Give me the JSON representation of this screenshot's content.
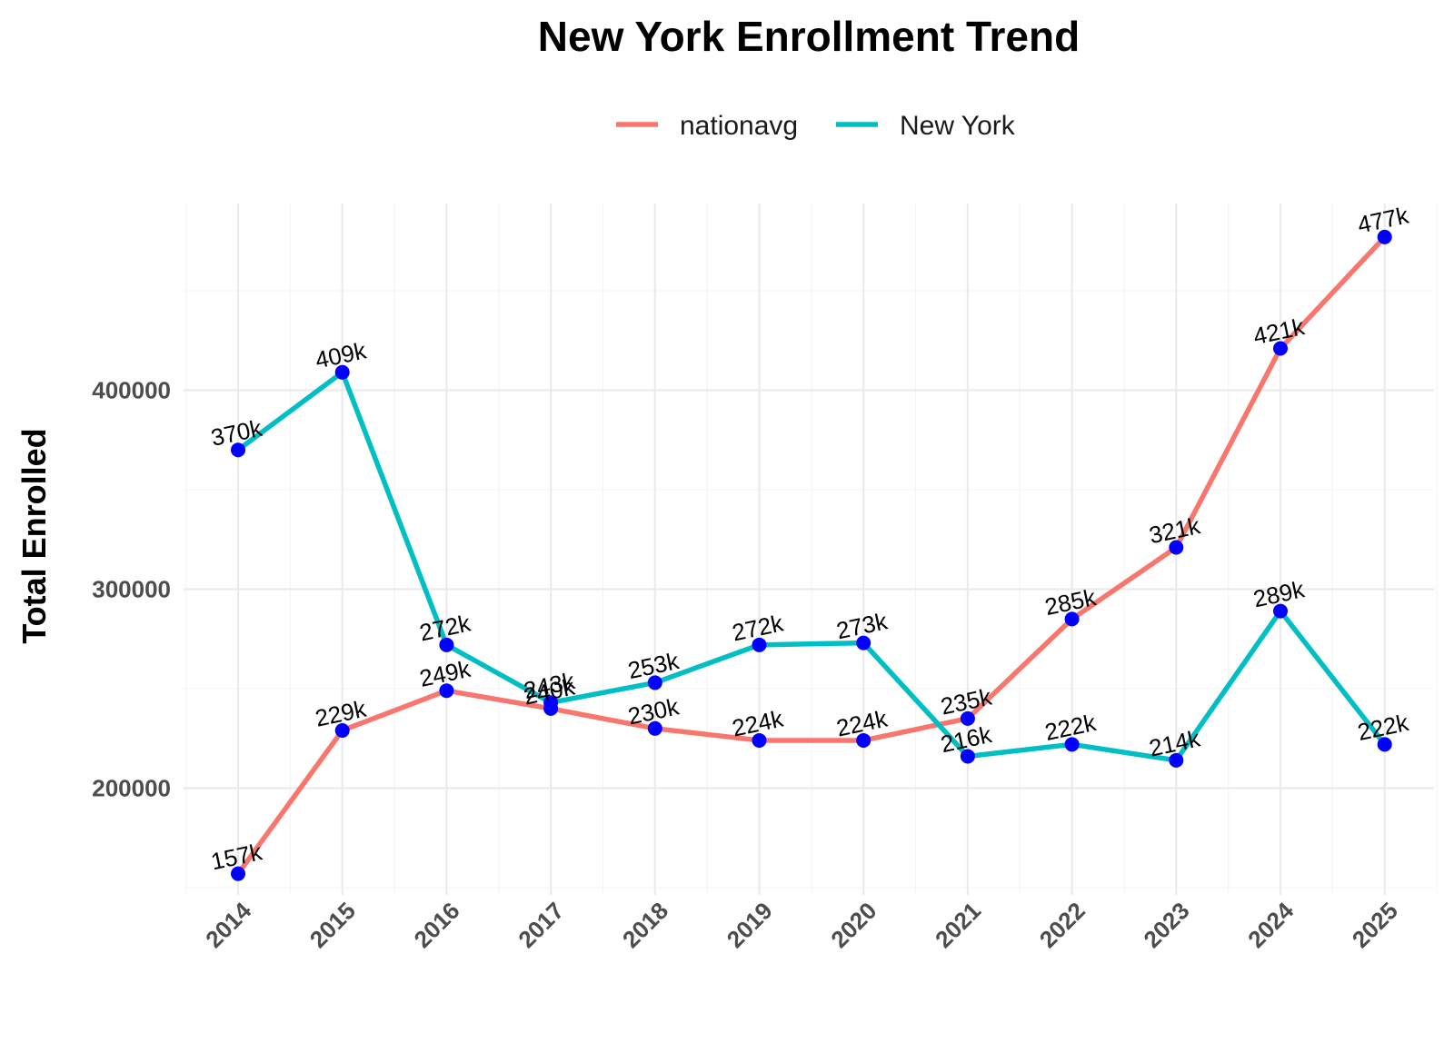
{
  "chart_data": {
    "type": "line",
    "title": "New York Enrollment Trend",
    "xlabel": "",
    "ylabel": "Total Enrolled",
    "x": [
      "2014",
      "2015",
      "2016",
      "2017",
      "2018",
      "2019",
      "2020",
      "2021",
      "2022",
      "2023",
      "2024",
      "2025"
    ],
    "ylim": [
      145000,
      490000
    ],
    "yticks": [
      200000,
      300000,
      400000
    ],
    "ytick_labels": [
      "200000",
      "300000",
      "400000"
    ],
    "grid": true,
    "legend_position": "top",
    "point_color": "#0000ff",
    "series": [
      {
        "name": "nationavg",
        "color": "#f8766d",
        "values": [
          157000,
          229000,
          249000,
          240000,
          230000,
          224000,
          224000,
          235000,
          285000,
          321000,
          421000,
          477000
        ],
        "labels": [
          "157k",
          "229k",
          "249k",
          "240k",
          "230k",
          "224k",
          "224k",
          "235k",
          "285k",
          "321k",
          "421k",
          "477k"
        ]
      },
      {
        "name": "New York",
        "color": "#00bfc4",
        "values": [
          370000,
          409000,
          272000,
          243000,
          253000,
          272000,
          273000,
          216000,
          222000,
          214000,
          289000,
          222000
        ],
        "labels": [
          "370k",
          "409k",
          "272k",
          "243k",
          "253k",
          "272k",
          "273k",
          "216k",
          "222k",
          "214k",
          "289k",
          "222k"
        ]
      }
    ]
  }
}
